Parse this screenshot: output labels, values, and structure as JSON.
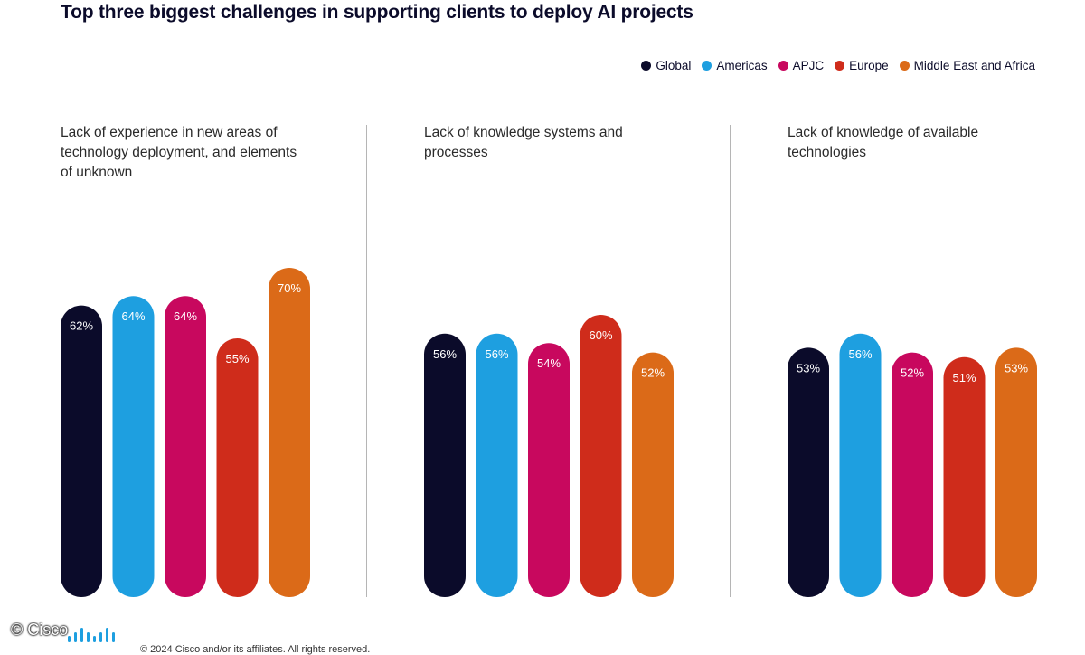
{
  "title": "Top three biggest challenges in supporting clients to deploy AI projects",
  "legend": [
    {
      "label": "Global",
      "color": "#0b0b2a"
    },
    {
      "label": "Americas",
      "color": "#1e9fe0"
    },
    {
      "label": "APJC",
      "color": "#c8085e"
    },
    {
      "label": "Europe",
      "color": "#cf2c1b"
    },
    {
      "label": "Middle East and Africa",
      "color": "#db6a18"
    }
  ],
  "chart_data": [
    {
      "type": "bar",
      "title": "Lack of experience in new areas of technology deployment, and elements of unknown",
      "categories": [
        "Global",
        "Americas",
        "APJC",
        "Europe",
        "Middle East and Africa"
      ],
      "values": [
        62,
        64,
        64,
        55,
        70
      ],
      "labels": [
        "62%",
        "64%",
        "64%",
        "55%",
        "70%"
      ],
      "ylim": [
        0,
        100
      ]
    },
    {
      "type": "bar",
      "title": "Lack of knowledge systems and processes",
      "categories": [
        "Global",
        "Americas",
        "APJC",
        "Europe",
        "Middle East and Africa"
      ],
      "values": [
        56,
        56,
        54,
        60,
        52
      ],
      "labels": [
        "56%",
        "56%",
        "54%",
        "60%",
        "52%"
      ],
      "ylim": [
        0,
        100
      ]
    },
    {
      "type": "bar",
      "title": "Lack of knowledge of available technologies",
      "categories": [
        "Global",
        "Americas",
        "APJC",
        "Europe",
        "Middle East and Africa"
      ],
      "values": [
        53,
        56,
        52,
        51,
        53
      ],
      "labels": [
        "53%",
        "56%",
        "52%",
        "51%",
        "53%"
      ],
      "ylim": [
        0,
        100
      ]
    }
  ],
  "footer": {
    "watermark": "© Cisco",
    "copyright": "© 2024 Cisco and/or its affiliates. All rights reserved."
  }
}
